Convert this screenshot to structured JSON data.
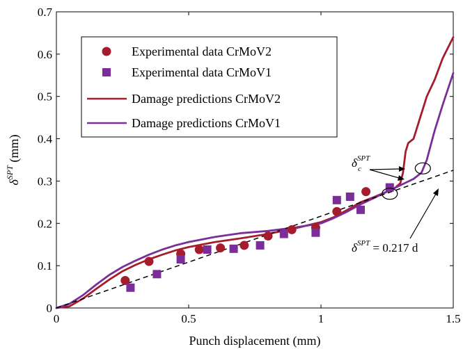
{
  "chart_data": {
    "type": "scatter",
    "xlabel": "Punch displacement (mm)",
    "ylabel_main": "δ",
    "ylabel_sup": "SPT",
    "ylabel_suffix": " (mm)",
    "xlim": [
      0,
      1.5
    ],
    "ylim": [
      0,
      0.7
    ],
    "x_ticks": [
      0,
      0.5,
      1,
      1.5
    ],
    "x_tick_labels": [
      "0",
      "0.5",
      "1",
      "1.5"
    ],
    "y_ticks": [
      0,
      0.1,
      0.2,
      0.3,
      0.4,
      0.5,
      0.6,
      0.7
    ],
    "y_tick_labels": [
      "0",
      "0.1",
      "0.2",
      "0.3",
      "0.4",
      "0.5",
      "0.6",
      "0.7"
    ],
    "grid": false,
    "legend_position": "upper-left",
    "colors": {
      "crmov2": "#a51d2d",
      "crmov1": "#7b2e99",
      "fit": "#000000"
    },
    "series": [
      {
        "name": "Experimental data CrMoV2",
        "kind": "markers",
        "marker": "circle",
        "color": "#a51d2d",
        "x": [
          0.26,
          0.35,
          0.47,
          0.54,
          0.62,
          0.71,
          0.8,
          0.89,
          0.98,
          1.06,
          1.17
        ],
        "y": [
          0.065,
          0.11,
          0.128,
          0.138,
          0.142,
          0.148,
          0.17,
          0.185,
          0.19,
          0.228,
          0.275
        ]
      },
      {
        "name": "Experimental data CrMoV1",
        "kind": "markers",
        "marker": "square",
        "color": "#7b2e99",
        "x": [
          0.28,
          0.38,
          0.47,
          0.57,
          0.67,
          0.77,
          0.86,
          0.98,
          1.06,
          1.11,
          1.15,
          1.26
        ],
        "y": [
          0.048,
          0.08,
          0.115,
          0.138,
          0.14,
          0.148,
          0.175,
          0.178,
          0.255,
          0.263,
          0.232,
          0.285
        ]
      },
      {
        "name": "Damage predictions CrMoV2",
        "kind": "line",
        "color": "#a51d2d",
        "x": [
          0,
          0.05,
          0.1,
          0.15,
          0.2,
          0.25,
          0.3,
          0.35,
          0.4,
          0.45,
          0.5,
          0.6,
          0.7,
          0.8,
          0.9,
          1.0,
          1.05,
          1.1,
          1.15,
          1.2,
          1.25,
          1.28,
          1.3,
          1.31,
          1.32,
          1.33,
          1.35,
          1.37,
          1.4,
          1.43,
          1.46,
          1.5
        ],
        "y": [
          0,
          0.004,
          0.022,
          0.045,
          0.067,
          0.087,
          0.102,
          0.115,
          0.126,
          0.136,
          0.144,
          0.156,
          0.165,
          0.175,
          0.188,
          0.203,
          0.215,
          0.232,
          0.25,
          0.262,
          0.275,
          0.284,
          0.295,
          0.32,
          0.37,
          0.39,
          0.4,
          0.44,
          0.5,
          0.54,
          0.59,
          0.64
        ]
      },
      {
        "name": "Damage predictions CrMoV1",
        "kind": "line",
        "color": "#7b2e99",
        "x": [
          0,
          0.05,
          0.1,
          0.15,
          0.2,
          0.25,
          0.3,
          0.35,
          0.4,
          0.45,
          0.5,
          0.6,
          0.7,
          0.8,
          0.9,
          1.0,
          1.05,
          1.1,
          1.15,
          1.2,
          1.25,
          1.3,
          1.35,
          1.38,
          1.4,
          1.43,
          1.46,
          1.5
        ],
        "y": [
          0,
          0.01,
          0.03,
          0.055,
          0.078,
          0.097,
          0.112,
          0.126,
          0.138,
          0.148,
          0.156,
          0.168,
          0.177,
          0.182,
          0.19,
          0.2,
          0.213,
          0.228,
          0.245,
          0.26,
          0.275,
          0.29,
          0.305,
          0.32,
          0.35,
          0.42,
          0.48,
          0.555
        ]
      },
      {
        "kind": "line",
        "style": "dashed",
        "color": "#000000",
        "slope": 0.217
      }
    ],
    "annotations": {
      "delta_c_main": "δ",
      "delta_c_sub": "c",
      "delta_c_sup": "SPT",
      "fit_main": "δ",
      "fit_sup": "SPT",
      "fit_rest": " = 0.217 d",
      "circles": [
        {
          "x": 1.26,
          "y": 0.27
        },
        {
          "x": 1.385,
          "y": 0.33
        }
      ]
    }
  }
}
